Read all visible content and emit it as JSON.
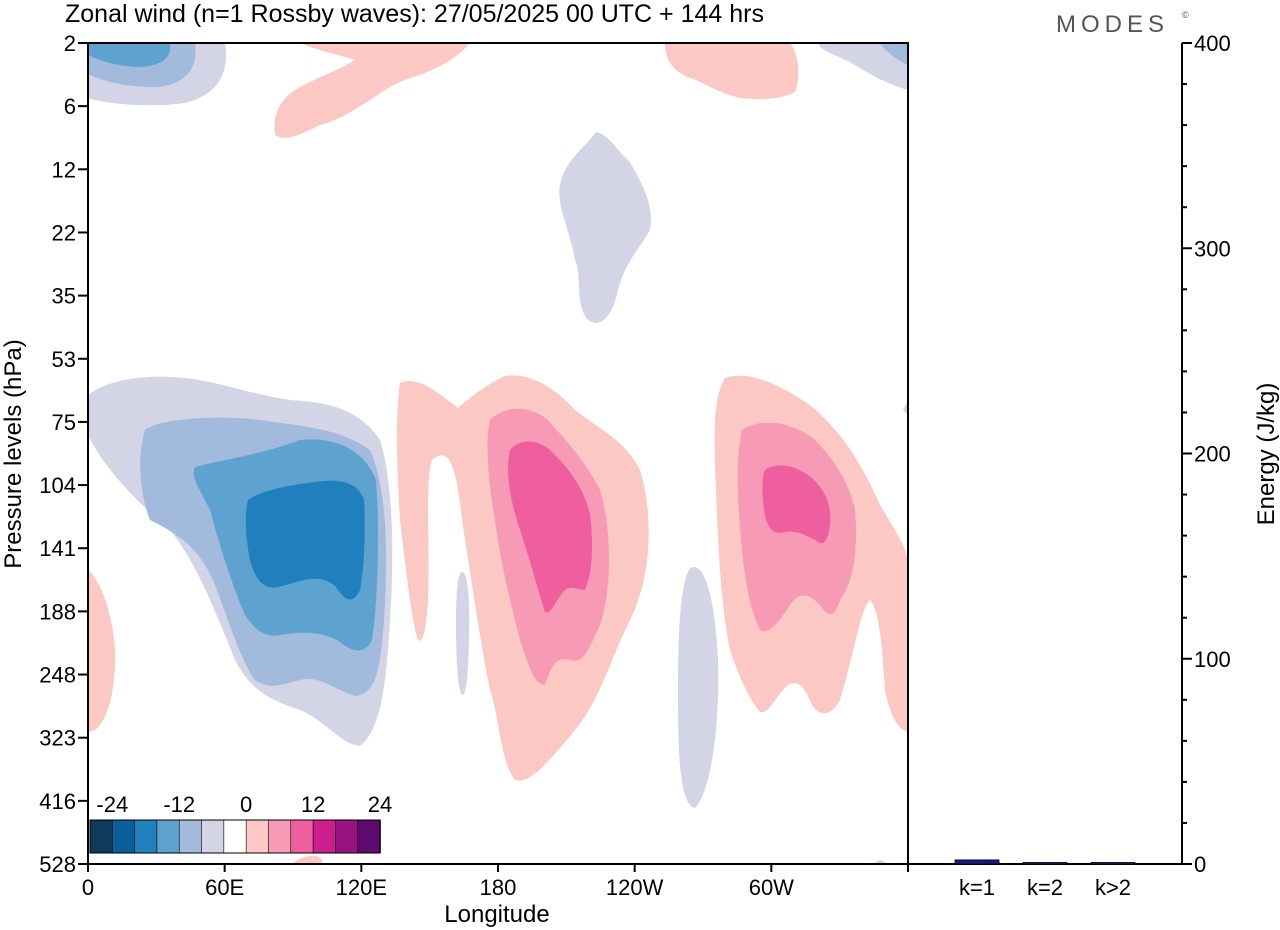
{
  "title": "Zonal wind (n=1 Rossby waves):  27/05/2025  00 UTC  + 144 hrs",
  "brand": "MODES",
  "brand_mark": "©",
  "chart_data": [
    {
      "type": "heatmap",
      "xlabel": "Longitude",
      "ylabel": "Pressure levels (hPa)",
      "x_ticks": [
        "0",
        "60E",
        "120E",
        "180",
        "120W",
        "60W"
      ],
      "y_ticks": [
        "2",
        "6",
        "12",
        "22",
        "35",
        "53",
        "75",
        "104",
        "141",
        "188",
        "248",
        "323",
        "416",
        "528"
      ],
      "colorbar": {
        "labels": [
          "-24",
          "-12",
          "0",
          "12",
          "24"
        ],
        "colors": [
          "#0f3a5c",
          "#0a5e9c",
          "#1f80bd",
          "#5ea3cf",
          "#a2bbdd",
          "#d3d5e7",
          "#ffffff",
          "#fbc8c3",
          "#f79ab6",
          "#ef5e9f",
          "#cc1e8f",
          "#99127f",
          "#5e0a6e"
        ]
      },
      "colors": {
        "negative_weak": "#d3d5e7",
        "negative_1": "#a2bbdd",
        "negative_2": "#5ea3cf",
        "negative_3": "#1f80bd",
        "positive_weak": "#fbc8c3",
        "positive_1": "#f79ab6",
        "positive_2": "#ef5e9f"
      }
    },
    {
      "type": "bar",
      "ylabel": "Energy (J/kg)",
      "categories": [
        "k=1",
        "k=2",
        "k>2"
      ],
      "values": [
        2,
        0.5,
        0.5
      ],
      "ylim": [
        0,
        400
      ],
      "y_ticks": [
        "0",
        "100",
        "200",
        "300",
        "400"
      ],
      "bar_color": "#1a1a80"
    }
  ]
}
